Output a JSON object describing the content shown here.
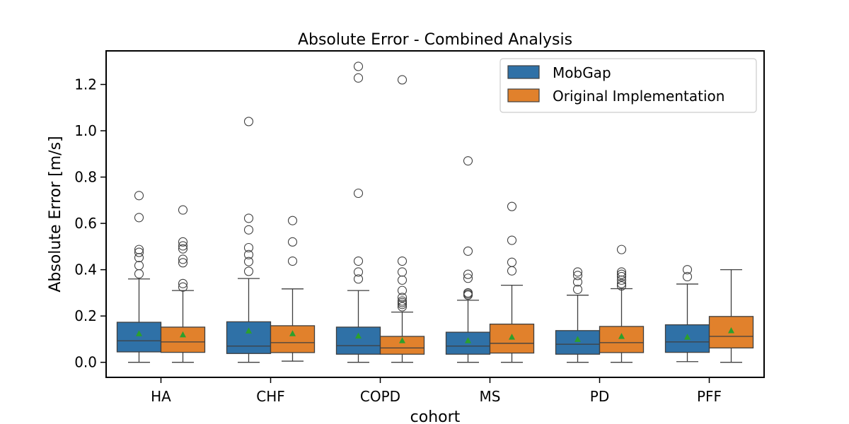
{
  "chart_data": {
    "type": "boxplot",
    "title": "Absolute Error - Combined Analysis",
    "xlabel": "cohort",
    "ylabel": "Absolute Error [m/s]",
    "ylim": [
      -0.065,
      1.345
    ],
    "yticks": [
      0.0,
      0.2,
      0.4,
      0.6,
      0.8,
      1.0,
      1.2
    ],
    "ytick_labels": [
      "0.0",
      "0.2",
      "0.4",
      "0.6",
      "0.8",
      "1.0",
      "1.2"
    ],
    "categories": [
      "HA",
      "CHF",
      "COPD",
      "MS",
      "PD",
      "PFF"
    ],
    "legend_position": "top-right",
    "grid": false,
    "series": [
      {
        "name": "MobGap",
        "color": "#2f71a7",
        "boxes": [
          {
            "whislo": 0.0,
            "q1": 0.045,
            "med": 0.093,
            "q3": 0.173,
            "whishi": 0.36,
            "mean": 0.125,
            "fliers": [
              0.382,
              0.418,
              0.452,
              0.475,
              0.487,
              0.625,
              0.72
            ]
          },
          {
            "whislo": 0.0,
            "q1": 0.038,
            "med": 0.07,
            "q3": 0.175,
            "whishi": 0.362,
            "mean": 0.137,
            "fliers": [
              0.393,
              0.435,
              0.465,
              0.495,
              0.572,
              0.622,
              1.04
            ]
          },
          {
            "whislo": 0.0,
            "q1": 0.035,
            "med": 0.072,
            "q3": 0.152,
            "whishi": 0.31,
            "mean": 0.115,
            "fliers": [
              0.36,
              0.39,
              0.437,
              0.73,
              1.228,
              1.278
            ]
          },
          {
            "whislo": 0.0,
            "q1": 0.035,
            "med": 0.07,
            "q3": 0.13,
            "whishi": 0.268,
            "mean": 0.095,
            "fliers": [
              0.29,
              0.295,
              0.3,
              0.363,
              0.38,
              0.48,
              0.87
            ]
          },
          {
            "whislo": 0.0,
            "q1": 0.035,
            "med": 0.078,
            "q3": 0.137,
            "whishi": 0.29,
            "mean": 0.1,
            "fliers": [
              0.315,
              0.347,
              0.375,
              0.39
            ]
          },
          {
            "whislo": 0.003,
            "q1": 0.043,
            "med": 0.088,
            "q3": 0.162,
            "whishi": 0.338,
            "mean": 0.11,
            "fliers": [
              0.37,
              0.4
            ]
          }
        ]
      },
      {
        "name": "Original Implementation",
        "color": "#e1812c",
        "boxes": [
          {
            "whislo": 0.0,
            "q1": 0.043,
            "med": 0.088,
            "q3": 0.152,
            "whishi": 0.31,
            "mean": 0.12,
            "fliers": [
              0.325,
              0.34,
              0.43,
              0.445,
              0.49,
              0.503,
              0.52,
              0.658
            ]
          },
          {
            "whislo": 0.005,
            "q1": 0.042,
            "med": 0.085,
            "q3": 0.158,
            "whishi": 0.317,
            "mean": 0.125,
            "fliers": [
              0.437,
              0.52,
              0.612
            ]
          },
          {
            "whislo": 0.0,
            "q1": 0.035,
            "med": 0.062,
            "q3": 0.112,
            "whishi": 0.217,
            "mean": 0.095,
            "fliers": [
              0.24,
              0.25,
              0.258,
              0.265,
              0.28,
              0.31,
              0.355,
              0.39,
              0.437,
              1.22
            ]
          },
          {
            "whislo": 0.0,
            "q1": 0.04,
            "med": 0.082,
            "q3": 0.165,
            "whishi": 0.333,
            "mean": 0.11,
            "fliers": [
              0.395,
              0.432,
              0.527,
              0.673
            ]
          },
          {
            "whislo": 0.0,
            "q1": 0.042,
            "med": 0.085,
            "q3": 0.155,
            "whishi": 0.318,
            "mean": 0.113,
            "fliers": [
              0.33,
              0.34,
              0.355,
              0.37,
              0.38,
              0.39,
              0.487
            ]
          },
          {
            "whislo": 0.0,
            "q1": 0.062,
            "med": 0.112,
            "q3": 0.198,
            "whishi": 0.4,
            "mean": 0.138,
            "fliers": []
          }
        ]
      }
    ]
  }
}
